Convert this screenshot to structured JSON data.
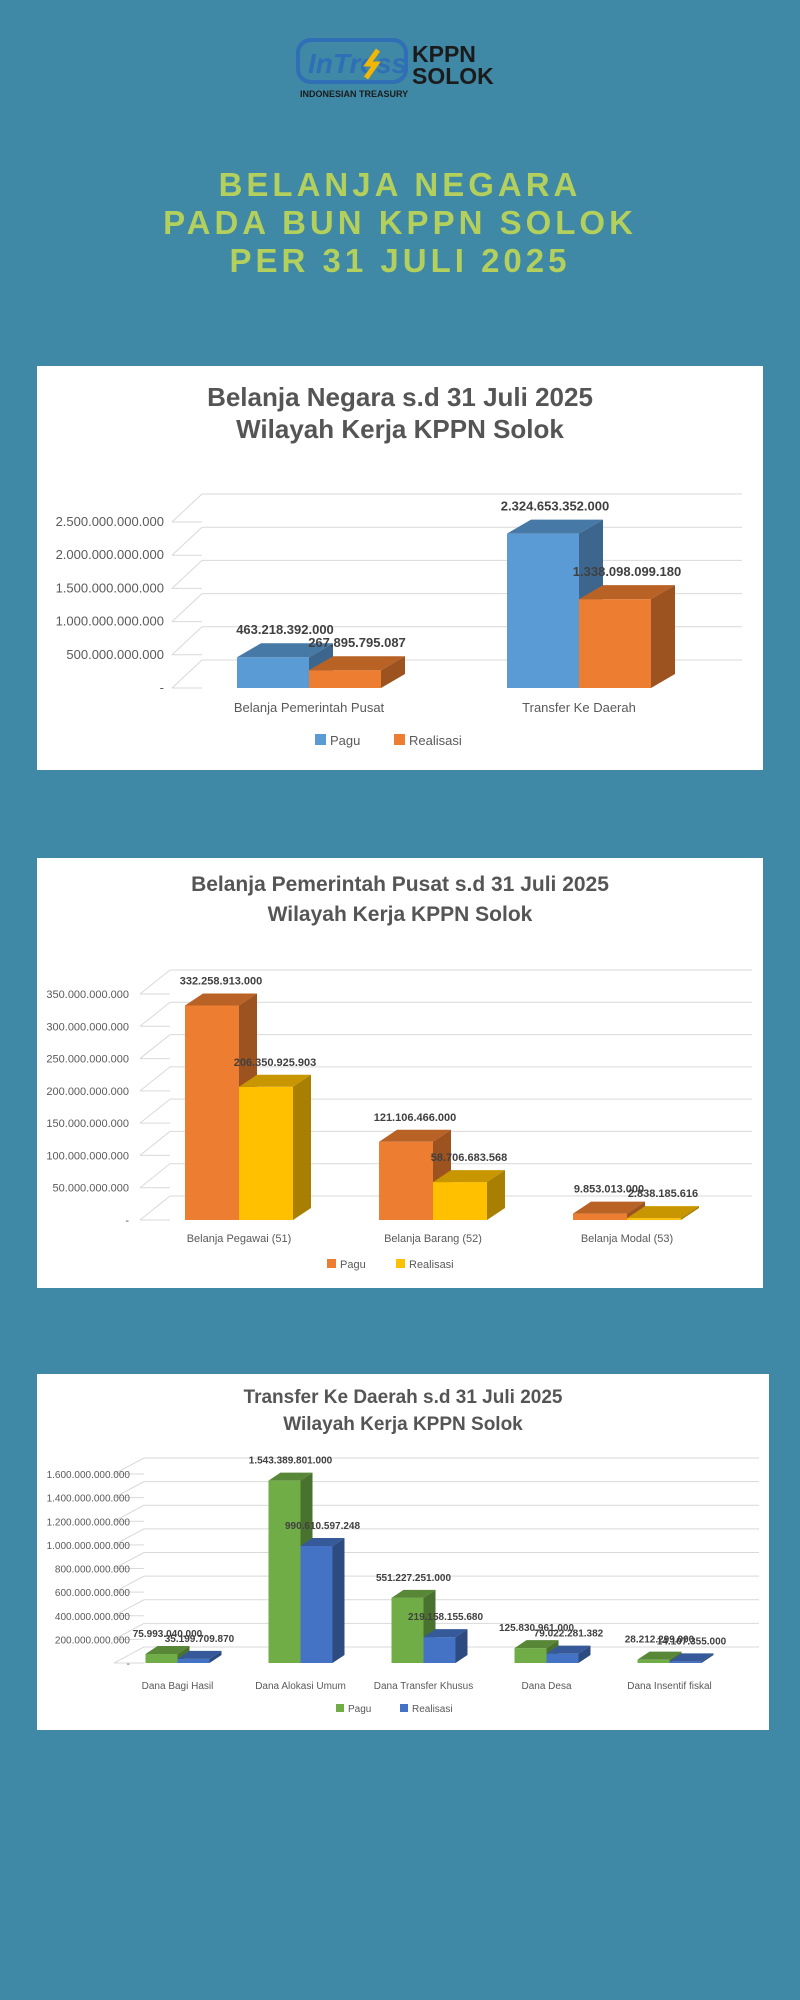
{
  "logo": {
    "mark_text": "InTress",
    "name_line1": "KPPN",
    "name_line2": "SOLOK",
    "tagline": "INDONESIAN TREASURY",
    "colors": {
      "ring": "#2e6fb5",
      "accent": "#f2b705",
      "name": "#1b1b1b"
    }
  },
  "headline": {
    "line1": "BELANJA NEGARA",
    "line2": "PADA BUN KPPN SOLOK",
    "line3": "PER 31 JULI 2025"
  },
  "colors": {
    "page_bg": "#3f88a6",
    "headline": "#b3cf5c",
    "grid": "#d9d9d9"
  },
  "chart_data": [
    {
      "type": "bar",
      "title": "Belanja Negara s.d 31 Juli 2025",
      "subtitle": "Wilayah Kerja KPPN Solok",
      "categories": [
        "Belanja Pemerintah Pusat",
        "Transfer Ke Daerah"
      ],
      "series": [
        {
          "name": "Pagu",
          "color": "#5b9bd5",
          "values": [
            463218392000,
            2324653352000
          ],
          "labels": [
            "463.218.392.000",
            "2.324.653.352.000"
          ]
        },
        {
          "name": "Realisasi",
          "color": "#ed7d31",
          "values": [
            267895795087,
            1338098099180
          ],
          "labels": [
            "267.895.795.087",
            "1.338.098.099.180"
          ]
        }
      ],
      "ylim": [
        0,
        2500000000000
      ],
      "yticks": [
        {
          "v": 0,
          "t": "-"
        },
        {
          "v": 500000000000,
          "t": "500.000.000.000"
        },
        {
          "v": 1000000000000,
          "t": "1.000.000.000.000"
        },
        {
          "v": 1500000000000,
          "t": "1.500.000.000.000"
        },
        {
          "v": 2000000000000,
          "t": "2.000.000.000.000"
        },
        {
          "v": 2500000000000,
          "t": "2.500.000.000.000"
        }
      ],
      "gridlines": 6,
      "legend": "bottom"
    },
    {
      "type": "bar",
      "title": "Belanja Pemerintah Pusat s.d 31 Juli 2025",
      "subtitle": "Wilayah Kerja KPPN Solok",
      "categories": [
        "Belanja Pegawai (51)",
        "Belanja Barang (52)",
        "Belanja Modal (53)"
      ],
      "series": [
        {
          "name": "Pagu",
          "color": "#ed7d31",
          "values": [
            332258913000,
            121106466000,
            9853013000
          ],
          "labels": [
            "332.258.913.000",
            "121.106.466.000",
            "9.853.013.000"
          ]
        },
        {
          "name": "Realisasi",
          "color": "#ffc000",
          "values": [
            206350925903,
            58706683568,
            2838185616
          ],
          "labels": [
            "206.350.925.903",
            "58.706.683.568",
            "2.838.185.616"
          ]
        }
      ],
      "ylim": [
        0,
        350000000000
      ],
      "yticks": [
        {
          "v": 0,
          "t": "-"
        },
        {
          "v": 50000000000,
          "t": "50.000.000.000"
        },
        {
          "v": 100000000000,
          "t": "100.000.000.000"
        },
        {
          "v": 150000000000,
          "t": "150.000.000.000"
        },
        {
          "v": 200000000000,
          "t": "200.000.000.000"
        },
        {
          "v": 250000000000,
          "t": "250.000.000.000"
        },
        {
          "v": 300000000000,
          "t": "300.000.000.000"
        },
        {
          "v": 350000000000,
          "t": "350.000.000.000"
        }
      ],
      "gridlines": 8,
      "legend": "bottom"
    },
    {
      "type": "bar",
      "title": "Transfer Ke Daerah s.d 31 Juli 2025",
      "subtitle": "Wilayah Kerja KPPN Solok",
      "categories": [
        "Dana Bagi Hasil",
        "Dana Alokasi Umum",
        "Dana Transfer Khusus",
        "Dana Desa",
        "Dana Insentif fiskal"
      ],
      "series": [
        {
          "name": "Pagu",
          "color": "#70ad47",
          "values": [
            75993040000,
            1543389801000,
            551227251000,
            125830961000,
            28212299000
          ],
          "labels": [
            "75.993.040.000",
            "1.543.389.801.000",
            "551.227.251.000",
            "125.830.961.000",
            "28.212.299.000"
          ]
        },
        {
          "name": "Realisasi",
          "color": "#4472c4",
          "values": [
            35199709870,
            990610597248,
            219158155680,
            79022281382,
            14107355000
          ],
          "labels": [
            "35.199.709.870",
            "990.610.597.248",
            "219.158.155.680",
            "79.022.281.382",
            "14.107.355.000"
          ]
        }
      ],
      "ylim": [
        0,
        1600000000000
      ],
      "yticks": [
        {
          "v": 0,
          "t": "-"
        },
        {
          "v": 200000000000,
          "t": "200.000.000.000"
        },
        {
          "v": 400000000000,
          "t": "400.000.000.000"
        },
        {
          "v": 600000000000,
          "t": "600.000.000.000"
        },
        {
          "v": 800000000000,
          "t": "800.000.000.000"
        },
        {
          "v": 1000000000000,
          "t": "1.000.000.000.000"
        },
        {
          "v": 1200000000000,
          "t": "1.200.000.000.000"
        },
        {
          "v": 1400000000000,
          "t": "1.400.000.000.000"
        },
        {
          "v": 1600000000000,
          "t": "1.600.000.000.000"
        }
      ],
      "gridlines": 9,
      "legend": "bottom"
    }
  ]
}
